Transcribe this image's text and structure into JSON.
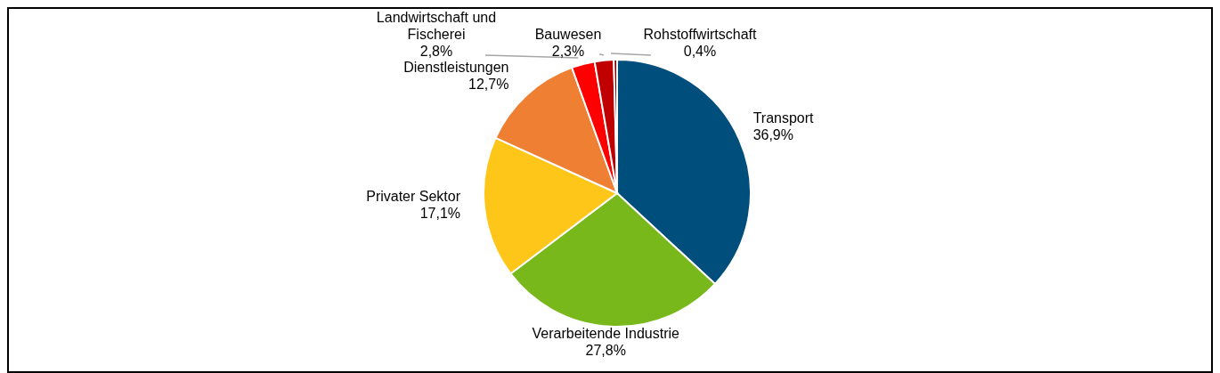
{
  "chart_data": {
    "type": "pie",
    "categories": [
      "Transport",
      "Verarbeitende Industrie",
      "Privater Sektor",
      "Dienstleistungen",
      "Landwirtschaft und Fischerei",
      "Bauwesen",
      "Rohstoffwirtschaft"
    ],
    "values": [
      36.9,
      27.8,
      17.1,
      12.7,
      2.8,
      2.3,
      0.4
    ],
    "value_labels": [
      "36,9%",
      "27,8%",
      "17,1%",
      "12,7%",
      "2,8%",
      "2,3%",
      "0,4%"
    ],
    "colors": [
      "#004e7c",
      "#78b81a",
      "#ffc61a",
      "#ee7f33",
      "#ff0000",
      "#c00000",
      "#7f0000"
    ],
    "legend": false
  }
}
